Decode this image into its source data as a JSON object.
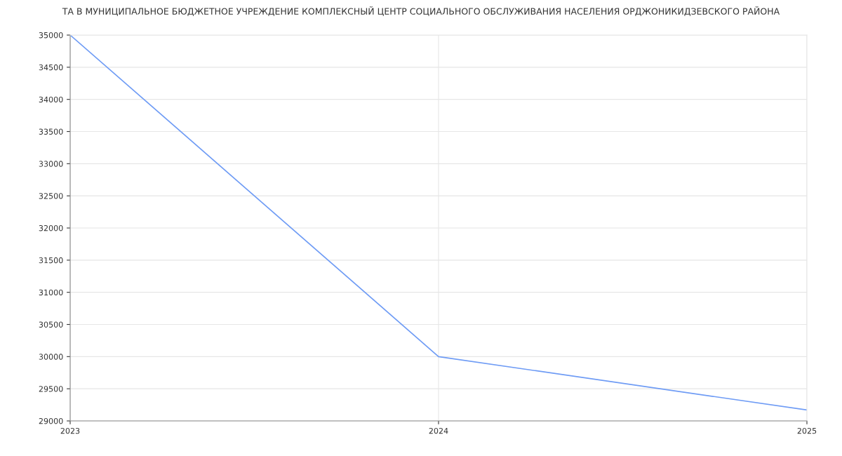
{
  "chart_data": {
    "type": "line",
    "title": "ТА В МУНИЦИПАЛЬНОЕ БЮДЖЕТНОЕ УЧРЕЖДЕНИЕ КОМПЛЕКСНЫЙ ЦЕНТР СОЦИАЛЬНОГО ОБСЛУЖИВАНИЯ НАСЕЛЕНИЯ ОРДЖОНИКИДЗЕВСКОГО РАЙОНА",
    "x": [
      2023,
      2024,
      2025
    ],
    "series": [
      {
        "color": "#6f9cf5",
        "values": [
          35000,
          30000,
          29170
        ]
      }
    ],
    "xlim": [
      2023,
      2025
    ],
    "xticks": [
      2023,
      2024,
      2025
    ],
    "ylim": [
      29000,
      35000
    ],
    "yticks": [
      29000,
      29500,
      30000,
      30500,
      31000,
      31500,
      32000,
      32500,
      33000,
      33500,
      34000,
      34500,
      35000
    ],
    "grid": true,
    "marker": "none",
    "line_style": "solid"
  }
}
